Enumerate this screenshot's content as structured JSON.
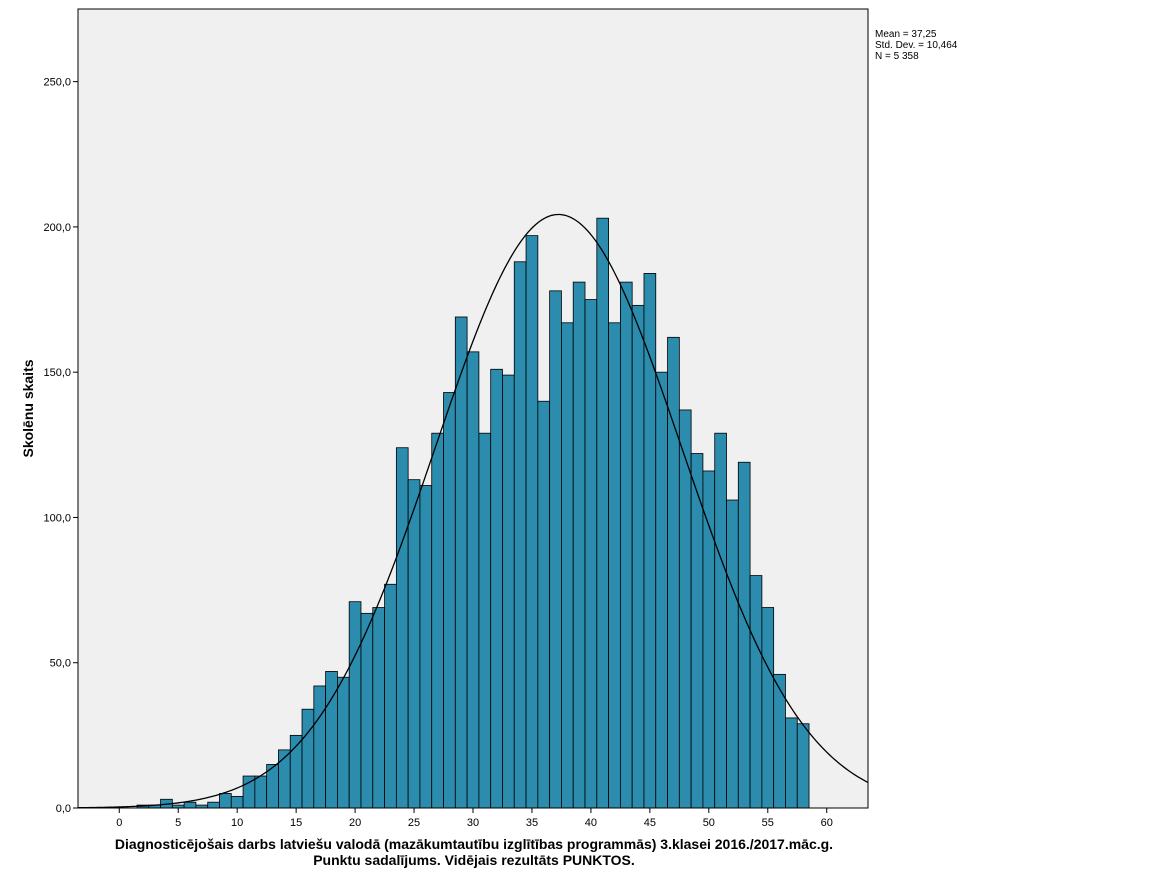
{
  "chart_data": {
    "type": "bar",
    "subtype": "histogram-with-normal-curve",
    "ylabel": "Skolēnu skaits",
    "xlabel_lines": [
      "Diagnosticējošais darbs latviešu valodā (mazākumtautību izglītības programmās) 3.klasei 2016./2017.māc.g.",
      "Punktu sadalījums. Vidējais rezultāts PUNKTOS."
    ],
    "stats": {
      "mean_label": "Mean = 37,25",
      "sd_label": "Std. Dev. = 10,464",
      "n_label": "N = 5 358"
    },
    "normal_curve": {
      "mean": 37.25,
      "sd": 10.464,
      "n": 5358,
      "bin_width": 1
    },
    "xlim": [
      -3.5,
      63.5
    ],
    "ylim": [
      0,
      275
    ],
    "x_ticks": [
      0,
      5,
      10,
      15,
      20,
      25,
      30,
      35,
      40,
      45,
      50,
      55,
      60
    ],
    "x_tick_labels": [
      "0",
      "5",
      "10",
      "15",
      "20",
      "25",
      "30",
      "35",
      "40",
      "45",
      "50",
      "55",
      "60"
    ],
    "y_ticks": [
      0,
      50,
      100,
      150,
      200,
      250
    ],
    "y_tick_labels": [
      "0,0",
      "50,0",
      "100,0",
      "150,0",
      "200,0",
      "250,0"
    ],
    "grid": false,
    "bar_color": "#2b8cad",
    "background_color": "#f0f0f0",
    "bins": [
      {
        "x": 2,
        "count": 1
      },
      {
        "x": 3,
        "count": 1
      },
      {
        "x": 4,
        "count": 3
      },
      {
        "x": 5,
        "count": 1
      },
      {
        "x": 6,
        "count": 2
      },
      {
        "x": 7,
        "count": 1
      },
      {
        "x": 8,
        "count": 2
      },
      {
        "x": 9,
        "count": 5
      },
      {
        "x": 10,
        "count": 4
      },
      {
        "x": 11,
        "count": 11
      },
      {
        "x": 12,
        "count": 11
      },
      {
        "x": 13,
        "count": 15
      },
      {
        "x": 14,
        "count": 20
      },
      {
        "x": 15,
        "count": 25
      },
      {
        "x": 16,
        "count": 34
      },
      {
        "x": 17,
        "count": 42
      },
      {
        "x": 18,
        "count": 47
      },
      {
        "x": 19,
        "count": 45
      },
      {
        "x": 20,
        "count": 71
      },
      {
        "x": 21,
        "count": 67
      },
      {
        "x": 22,
        "count": 69
      },
      {
        "x": 23,
        "count": 77
      },
      {
        "x": 24,
        "count": 124
      },
      {
        "x": 25,
        "count": 113
      },
      {
        "x": 26,
        "count": 111
      },
      {
        "x": 27,
        "count": 129
      },
      {
        "x": 28,
        "count": 143
      },
      {
        "x": 29,
        "count": 169
      },
      {
        "x": 30,
        "count": 157
      },
      {
        "x": 31,
        "count": 129
      },
      {
        "x": 32,
        "count": 151
      },
      {
        "x": 33,
        "count": 149
      },
      {
        "x": 34,
        "count": 188
      },
      {
        "x": 35,
        "count": 197
      },
      {
        "x": 36,
        "count": 140
      },
      {
        "x": 37,
        "count": 178
      },
      {
        "x": 38,
        "count": 167
      },
      {
        "x": 39,
        "count": 181
      },
      {
        "x": 40,
        "count": 175
      },
      {
        "x": 41,
        "count": 203
      },
      {
        "x": 42,
        "count": 167
      },
      {
        "x": 43,
        "count": 181
      },
      {
        "x": 44,
        "count": 173
      },
      {
        "x": 45,
        "count": 184
      },
      {
        "x": 46,
        "count": 150
      },
      {
        "x": 47,
        "count": 162
      },
      {
        "x": 48,
        "count": 137
      },
      {
        "x": 49,
        "count": 122
      },
      {
        "x": 50,
        "count": 116
      },
      {
        "x": 51,
        "count": 129
      },
      {
        "x": 52,
        "count": 106
      },
      {
        "x": 53,
        "count": 119
      },
      {
        "x": 54,
        "count": 80
      },
      {
        "x": 55,
        "count": 69
      },
      {
        "x": 56,
        "count": 46
      },
      {
        "x": 57,
        "count": 31
      },
      {
        "x": 58,
        "count": 29
      }
    ]
  }
}
